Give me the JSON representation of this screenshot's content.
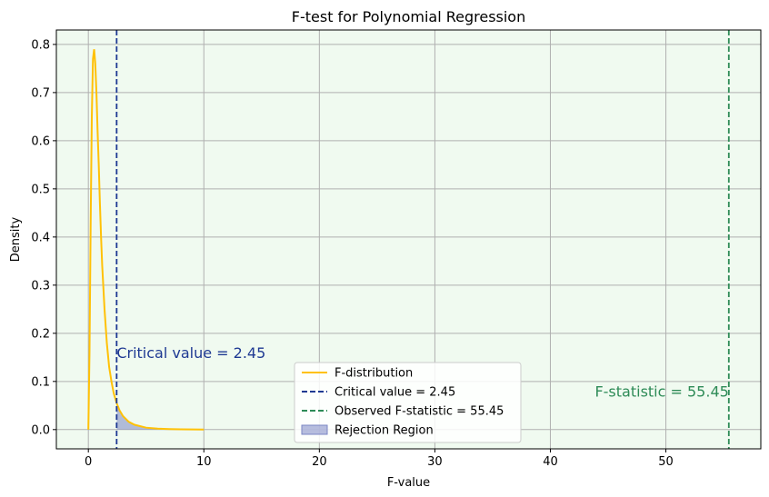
{
  "chart_data": {
    "type": "line",
    "title": "F-test for Polynomial Regression",
    "xlabel": "F-value",
    "ylabel": "Density",
    "xlim": [
      -2.77,
      58.22
    ],
    "ylim": [
      -0.04,
      0.83
    ],
    "xticks": [
      0,
      10,
      20,
      30,
      40,
      50
    ],
    "yticks": [
      0.0,
      0.1,
      0.2,
      0.3,
      0.4,
      0.5,
      0.6,
      0.7,
      0.8
    ],
    "grid": true,
    "legend_placement": "lower center",
    "series": [
      {
        "name": "F-distribution",
        "x": [
          0,
          0.1,
          0.2,
          0.3,
          0.4,
          0.5,
          0.6,
          0.7,
          0.8,
          0.9,
          1.0,
          1.1,
          1.2,
          1.4,
          1.6,
          1.8,
          2.0,
          2.2,
          2.45,
          2.7,
          3.0,
          3.5,
          4.0,
          5.0,
          6.0,
          7.0,
          8.0,
          10.0
        ],
        "y": [
          0.0,
          0.16,
          0.43,
          0.65,
          0.77,
          0.79,
          0.76,
          0.7,
          0.62,
          0.55,
          0.47,
          0.4,
          0.34,
          0.25,
          0.18,
          0.13,
          0.1,
          0.075,
          0.055,
          0.04,
          0.028,
          0.016,
          0.01,
          0.004,
          0.002,
          0.001,
          0.0005,
          0.0001
        ]
      },
      {
        "name": "Critical value = 2.45",
        "x_value": 2.45,
        "style": "dashed"
      },
      {
        "name": "Observed F-statistic = 55.45",
        "x_value": 55.45,
        "style": "dashed"
      },
      {
        "name": "Rejection Region",
        "x_from": 2.45,
        "x_to": 10.0,
        "style": "shaded"
      }
    ],
    "annotations": [
      {
        "text": "Critical value = 2.45",
        "x": 2.45,
        "y": 0.16
      },
      {
        "text": "F-statistic = 55.45",
        "x": 55.45,
        "y": 0.08
      }
    ],
    "colors": {
      "distribution": "#ffc107",
      "critical": "#1f3a93",
      "observed": "#2e8b57",
      "rejection_fill": "#7b86c4",
      "background": "#f0faf0",
      "grid": "#b0b0b0"
    }
  }
}
